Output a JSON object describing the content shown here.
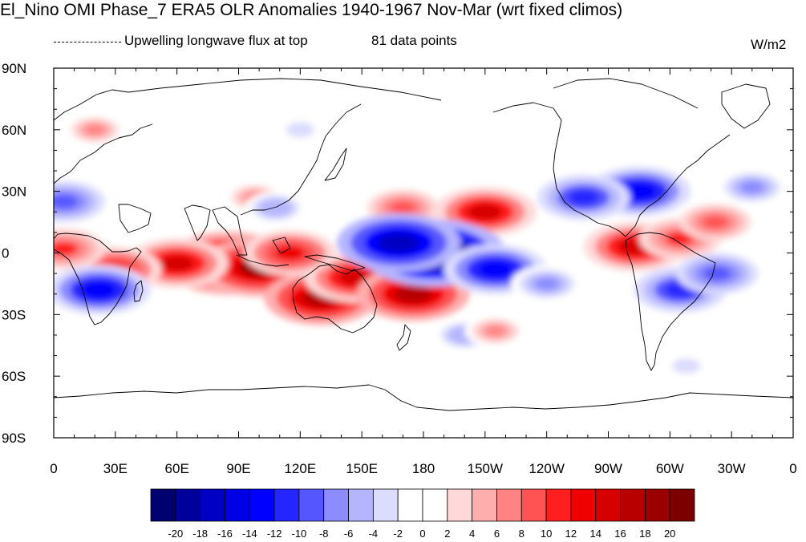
{
  "title": "El_Nino OMI Phase_7 ERA5 OLR Anomalies 1940-1967 Nov-Mar (wrt fixed climos)",
  "legend_line_label": "Upwelling longwave flux at top",
  "data_points_label": "81 data points",
  "units": "W/m2",
  "lat_ticks": [
    "90N",
    "60N",
    "30N",
    "0",
    "30S",
    "60S",
    "90S"
  ],
  "lon_ticks": [
    "0",
    "30E",
    "60E",
    "90E",
    "120E",
    "150E",
    "180",
    "150W",
    "120W",
    "90W",
    "60W",
    "30W",
    "0"
  ],
  "colorbar": {
    "labels": [
      "-20",
      "-18",
      "-16",
      "-14",
      "-12",
      "-10",
      "-8",
      "-6",
      "-4",
      "-2",
      "0",
      "2",
      "4",
      "6",
      "8",
      "10",
      "12",
      "14",
      "16",
      "18",
      "20"
    ],
    "colors": [
      "#000070",
      "#00009b",
      "#0000c4",
      "#0000e6",
      "#0000ff",
      "#2525ff",
      "#5656ff",
      "#8c8cff",
      "#b5b5ff",
      "#dcdcff",
      "#ffffff",
      "#ffffff",
      "#ffd9d9",
      "#ffaeae",
      "#ff8383",
      "#ff5252",
      "#ff1f1f",
      "#f00000",
      "#d70000",
      "#b80000",
      "#9a0000",
      "#7c0000"
    ]
  },
  "chart_data": {
    "type": "heatmap",
    "projection": "cylindrical equidistant",
    "lon_range": [
      0,
      360
    ],
    "lat_range": [
      -90,
      90
    ],
    "units": "W/m2",
    "contour_levels": [
      -20,
      -18,
      -16,
      -14,
      -12,
      -10,
      -8,
      -6,
      -4,
      -2,
      0,
      2,
      4,
      6,
      8,
      10,
      12,
      14,
      16,
      18,
      20
    ],
    "anomaly_features": [
      {
        "lon": 85,
        "lat": -5,
        "value": 20
      },
      {
        "lon": 100,
        "lat": -7,
        "value": 18
      },
      {
        "lon": 60,
        "lat": -5,
        "value": 14
      },
      {
        "lon": 130,
        "lat": -22,
        "value": 16
      },
      {
        "lon": 147,
        "lat": -12,
        "value": 14
      },
      {
        "lon": 175,
        "lat": -20,
        "value": 16
      },
      {
        "lon": 115,
        "lat": 0,
        "value": 12
      },
      {
        "lon": 30,
        "lat": -8,
        "value": 12
      },
      {
        "lon": 5,
        "lat": 2,
        "value": 10
      },
      {
        "lon": 210,
        "lat": 20,
        "value": 14
      },
      {
        "lon": 170,
        "lat": 22,
        "value": 8
      },
      {
        "lon": 98,
        "lat": 27,
        "value": 6
      },
      {
        "lon": 283,
        "lat": 3,
        "value": 14
      },
      {
        "lon": 305,
        "lat": 7,
        "value": 10
      },
      {
        "lon": 322,
        "lat": 15,
        "value": 8
      },
      {
        "lon": 185,
        "lat": 0,
        "value": -22
      },
      {
        "lon": 215,
        "lat": -8,
        "value": -14
      },
      {
        "lon": 240,
        "lat": -15,
        "value": -8
      },
      {
        "lon": 168,
        "lat": 5,
        "value": -18
      },
      {
        "lon": 22,
        "lat": -18,
        "value": -14
      },
      {
        "lon": 5,
        "lat": 25,
        "value": -10
      },
      {
        "lon": 305,
        "lat": -18,
        "value": -12
      },
      {
        "lon": 323,
        "lat": -10,
        "value": -10
      },
      {
        "lon": 285,
        "lat": 30,
        "value": -14
      },
      {
        "lon": 258,
        "lat": 27,
        "value": -12
      },
      {
        "lon": 340,
        "lat": 32,
        "value": -8
      },
      {
        "lon": 108,
        "lat": 22,
        "value": -6
      },
      {
        "lon": 120,
        "lat": 60,
        "value": -4
      },
      {
        "lon": 200,
        "lat": -40,
        "value": -6
      },
      {
        "lon": 20,
        "lat": 60,
        "value": 6
      },
      {
        "lon": 215,
        "lat": -38,
        "value": 6
      },
      {
        "lon": 308,
        "lat": -55,
        "value": -4
      }
    ]
  }
}
